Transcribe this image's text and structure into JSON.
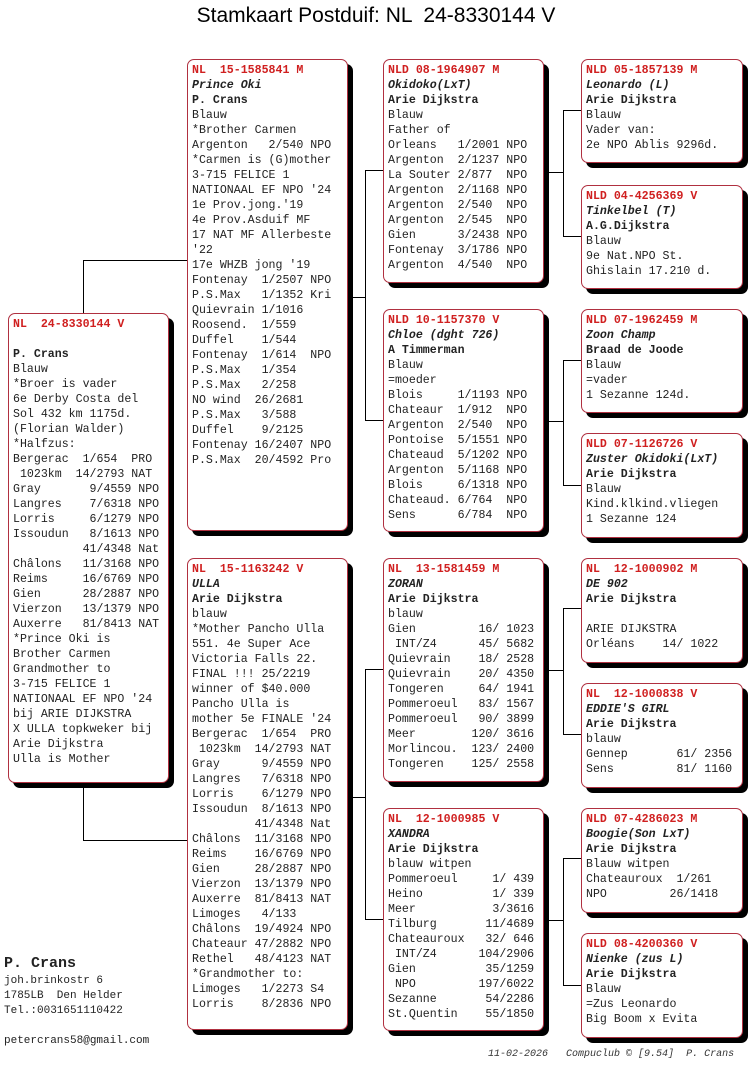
{
  "title": "Stamkaart Postduif: NL  24-8330144 V",
  "colors": {
    "ring": "#d02020",
    "border": "#b03040",
    "shadow": "#000000"
  },
  "birds": [
    {
      "id": "subject",
      "ring": "NL  24-8330144 V",
      "name": "",
      "owner": "P. Crans",
      "blank_after_ring": true,
      "notes": [
        "Blauw",
        "*Broer is vader",
        "6e Derby Costa del",
        "Sol 432 km 1175d.",
        "(Florian Walder)",
        "*Halfzus:",
        "Bergerac  1/654  PRO",
        " 1023km  14/2793 NAT",
        "Gray       9/4559 NPO",
        "Langres    7/6318 NPO",
        "Lorris     6/1279 NPO",
        "Issoudun   8/1613 NPO",
        "          41/4348 Nat",
        "Châlons   11/3168 NPO",
        "Reims     16/6769 NPO",
        "Gien      28/2887 NPO",
        "Vierzon   13/1379 NPO",
        "Auxerre   81/8413 NAT",
        "*Prince Oki is",
        "Brother Carmen",
        "Grandmother to",
        "3-715 FELICE 1",
        "NATIONAAL EF NPO '24",
        "bij ARIE DIJKSTRA",
        "X ULLA topkweker bij",
        "Arie Dijkstra",
        "Ulla is Mother"
      ]
    },
    {
      "id": "sire",
      "ring": "NL  15-1585841 M",
      "name": "Prince Oki",
      "owner": "P. Crans",
      "notes": [
        "Blauw",
        "*Brother Carmen",
        "Argenton   2/540 NPO",
        "*Carmen is (G)mother",
        "3-715 FELICE 1",
        "NATIONAAL EF NPO '24",
        "1e Prov.jong.'19",
        "4e Prov.Asduif MF",
        "17 NAT MF Allerbeste",
        "'22",
        "17e WHZB jong '19",
        "Fontenay  1/2507 NPO",
        "P.S.Max   1/1352 Kri",
        "Quievrain 1/1016",
        "Roosend.  1/559",
        "Duffel    1/544",
        "Fontenay  1/614  NPO",
        "P.S.Max   1/354",
        "P.S.Max   2/258",
        "NO wind  26/2681",
        "P.S.Max   3/588",
        "Duffel    9/2125",
        "Fontenay 16/2407 NPO",
        "P.S.Max  20/4592 Pro"
      ]
    },
    {
      "id": "dam",
      "ring": "NL  15-1163242 V",
      "name": "ULLA",
      "owner": "Arie Dijkstra",
      "notes": [
        "blauw",
        "*Mother Pancho Ulla",
        "551. 4e Super Ace",
        "Victoria Falls 22.",
        "FINAL !!! 25/2219",
        "winner of $40.000",
        "Pancho Ulla is",
        "mother 5e FINALE '24",
        "Bergerac  1/654  PRO",
        " 1023km  14/2793 NAT",
        "Gray      9/4559 NPO",
        "Langres   7/6318 NPO",
        "Lorris    6/1279 NPO",
        "Issoudun  8/1613 NPO",
        "         41/4348 Nat",
        "Châlons  11/3168 NPO",
        "Reims    16/6769 NPO",
        "Gien     28/2887 NPO",
        "Vierzon  13/1379 NPO",
        "Auxerre  81/8413 NAT",
        "Limoges   4/133",
        "Châlons  19/4924 NPO",
        "Chateaur 47/2882 NPO",
        "Rethel   48/4123 NAT",
        "*Grandmother to:",
        "Limoges   1/2273 S4",
        "Lorris    8/2836 NPO"
      ]
    },
    {
      "id": "sire-sire",
      "ring": "NLD 08-1964907 M",
      "name": "Okidoko(LxT)",
      "owner": "Arie Dijkstra",
      "notes": [
        "Blauw",
        "Father of",
        "Orleans   1/2001 NPO",
        "Argenton  2/1237 NPO",
        "La Souter 2/877  NPO",
        "Argenton  2/1168 NPO",
        "Argenton  2/540  NPO",
        "Argenton  2/545  NPO",
        "Gien      3/2438 NPO",
        "Fontenay  3/1786 NPO",
        "Argenton  4/540  NPO"
      ]
    },
    {
      "id": "sire-dam",
      "ring": "NLD 10-1157370 V",
      "name": "Chloe (dght 726)",
      "owner": "A Timmerman",
      "notes": [
        "Blauw",
        "=moeder",
        "Blois     1/1193 NPO",
        "Chateaur  1/912  NPO",
        "Argenton  2/540  NPO",
        "Pontoise  5/1551 NPO",
        "Chateaud  5/1202 NPO",
        "Argenton  5/1168 NPO",
        "Blois     6/1318 NPO",
        "Chateaud. 6/764  NPO",
        "Sens      6/784  NPO"
      ]
    },
    {
      "id": "dam-sire",
      "ring": "NL  13-1581459 M",
      "name": "ZORAN",
      "owner": "Arie Dijkstra",
      "notes": [
        "blauw",
        "Gien         16/ 1023",
        " INT/Z4      45/ 5682",
        "Quievrain    18/ 2528",
        "Quievrain    20/ 4350",
        "Tongeren     64/ 1941",
        "Pommeroeul   83/ 1567",
        "Pommeroeul   90/ 3899",
        "Meer        120/ 3616",
        "Morlincou.  123/ 2400",
        "Tongeren    125/ 2558"
      ]
    },
    {
      "id": "dam-dam",
      "ring": "NL  12-1000985 V",
      "name": "XANDRA",
      "owner": "Arie Dijkstra",
      "notes": [
        "blauw witpen",
        "Pommeroeul     1/ 439",
        "Heino          1/ 339",
        "Meer           3/3616",
        "Tilburg       11/4689",
        "Chateauroux   32/ 646",
        " INT/Z4      104/2906",
        "Gien          35/1259",
        " NPO         197/6022",
        "Sezanne       54/2286",
        "St.Quentin    55/1850"
      ]
    },
    {
      "id": "ss-sire",
      "ring": "NLD 05-1857139 M",
      "name": "Leonardo (L)",
      "owner": "Arie Dijkstra",
      "notes": [
        "Blauw",
        "Vader van:",
        "2e NPO Ablis 9296d."
      ]
    },
    {
      "id": "ss-dam",
      "ring": "NLD 04-4256369 V",
      "name": "Tinkelbel (T)",
      "owner": "A.G.Dijkstra",
      "notes": [
        "Blauw",
        "9e Nat.NPO St.",
        "Ghislain 17.210 d."
      ]
    },
    {
      "id": "sd-sire",
      "ring": "NLD 07-1962459 M",
      "name": "Zoon Champ",
      "owner": "Braad de Joode",
      "notes": [
        "Blauw",
        "=vader",
        "1 Sezanne 124d."
      ]
    },
    {
      "id": "sd-dam",
      "ring": "NLD 07-1126726 V",
      "name": "Zuster Okidoki(LxT)",
      "owner": "Arie Dijkstra",
      "notes": [
        "Blauw",
        "Kind.klkind.vliegen",
        "1 Sezanne 124"
      ]
    },
    {
      "id": "ds-sire",
      "ring": "NL  12-1000902 M",
      "name": "DE 902",
      "owner": "Arie Dijkstra",
      "notes": [
        "",
        "ARIE DIJKSTRA",
        "Orléans    14/ 1022"
      ]
    },
    {
      "id": "ds-dam",
      "ring": "NL  12-1000838 V",
      "name": "EDDIE'S GIRL",
      "owner": "Arie Dijkstra",
      "notes": [
        "blauw",
        "Gennep       61/ 2356",
        "Sens         81/ 1160"
      ]
    },
    {
      "id": "dd-sire",
      "ring": "NLD 07-4286023 M",
      "name": "Boogie(Son LxT)",
      "owner": "Arie Dijkstra",
      "notes": [
        "Blauw witpen",
        "Chateauroux  1/261",
        "NPO         26/1418"
      ]
    },
    {
      "id": "dd-dam",
      "ring": "NLD 08-4200360 V",
      "name": "Nienke (zus L)",
      "owner": "Arie Dijkstra",
      "notes": [
        "Blauw",
        "=Zus Leonardo",
        "Big Boom x Evita"
      ]
    }
  ],
  "contact": {
    "name": "P. Crans",
    "street": "joh.brinkostr 6",
    "city": "1785LB  Den Helder",
    "phone": "Tel.:0031651110422",
    "email": "petercrans58@gmail.com"
  },
  "footer": {
    "date": "11-02-2026",
    "program": "Compuclub © [9.54]",
    "author": "P. Crans"
  }
}
